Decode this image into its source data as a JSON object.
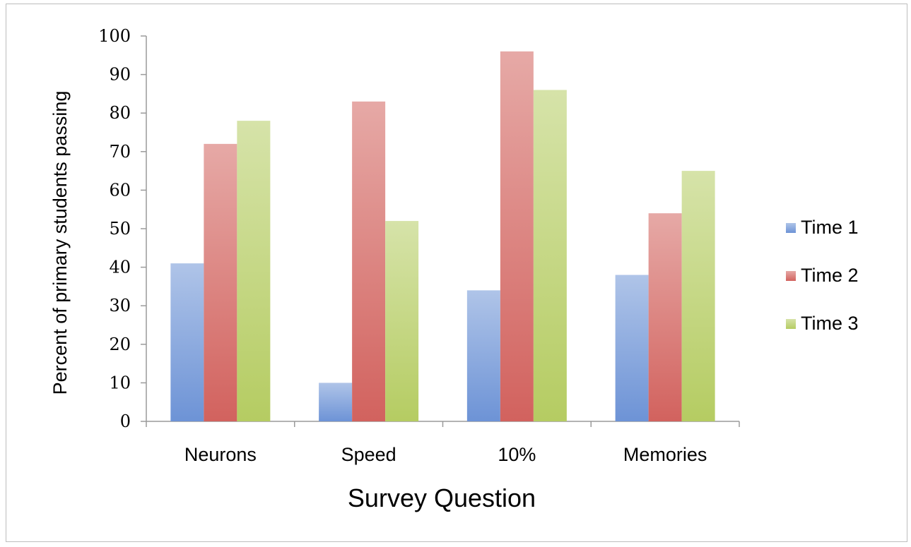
{
  "chart_data": {
    "type": "bar",
    "categories": [
      "Neurons",
      "Speed",
      "10%",
      "Memories"
    ],
    "series": [
      {
        "name": "Time 1",
        "values": [
          41,
          10,
          34,
          38
        ],
        "color": "#6d93d6"
      },
      {
        "name": "Time 2",
        "values": [
          72,
          83,
          96,
          54
        ],
        "color": "#d2625e"
      },
      {
        "name": "Time 3",
        "values": [
          78,
          52,
          86,
          65
        ],
        "color": "#b5cc62"
      }
    ],
    "xlabel": "Survey Question",
    "ylabel": "Percent of primary students passing",
    "ylim": [
      0,
      100
    ],
    "yticks": [
      "0",
      "10",
      "20",
      "30",
      "40",
      "50",
      "60",
      "70",
      "80",
      "90",
      "100"
    ],
    "grid": false,
    "legend": "right"
  }
}
